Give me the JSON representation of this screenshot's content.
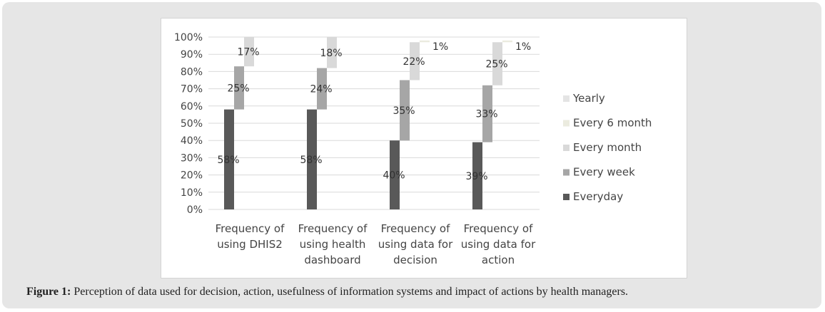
{
  "chart_data": {
    "type": "bar",
    "stacked": true,
    "categories": [
      [
        "Frequency of",
        "using DHIS2"
      ],
      [
        "Frequency of",
        "using  health",
        "dashboard"
      ],
      [
        "Frequency of",
        "using data for",
        "decision"
      ],
      [
        "Frequency of",
        "using data for",
        "action"
      ]
    ],
    "y_ticks": [
      "0%",
      "10%",
      "20%",
      "30%",
      "40%",
      "50%",
      "60%",
      "70%",
      "80%",
      "90%",
      "100%"
    ],
    "ylim": [
      0,
      100
    ],
    "series": [
      {
        "name": "Everyday",
        "color": "#595959",
        "values": [
          58,
          58,
          40,
          39
        ],
        "labels": [
          "58%",
          "58%",
          "40%",
          "39%"
        ]
      },
      {
        "name": "Every week",
        "color": "#a6a6a6",
        "values": [
          25,
          24,
          35,
          33
        ],
        "labels": [
          "25%",
          "24%",
          "35%",
          "33%"
        ]
      },
      {
        "name": "Every month",
        "color": "#d9d9d9",
        "values": [
          17,
          18,
          22,
          25
        ],
        "labels": [
          "17%",
          "18%",
          "22%",
          "25%"
        ]
      },
      {
        "name": "Every 6 month",
        "color": "#ebebdf",
        "values": [
          0,
          0,
          1,
          1
        ],
        "labels": [
          "",
          "",
          "1%",
          "1%"
        ]
      },
      {
        "name": "Yearly",
        "color": "#e4e4e4",
        "values": [
          0,
          0,
          0,
          0
        ],
        "labels": [
          "",
          "",
          "",
          ""
        ]
      }
    ],
    "legend": [
      "Yearly",
      "Every 6 month",
      "Every month",
      "Every week",
      "Everyday"
    ],
    "legend_position": "right",
    "grid": true
  },
  "caption": {
    "label": "Figure 1:",
    "text": " Perception of data used for decision, action, usefulness of information systems and impact of actions by health managers."
  }
}
